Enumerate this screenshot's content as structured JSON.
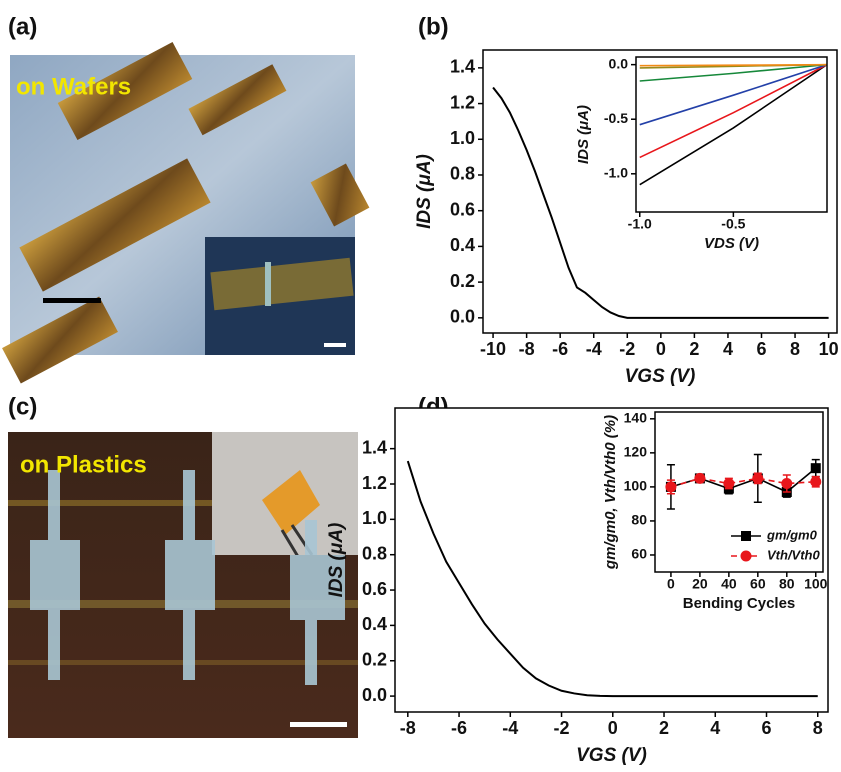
{
  "panels": [
    {
      "label": "(a)",
      "photo_text": "on Wafers"
    },
    {
      "label": "(b)"
    },
    {
      "label": "(c)",
      "photo_text": "on Plastics"
    },
    {
      "label": "(d)"
    }
  ],
  "chart_data": [
    {
      "type": "line",
      "x": [
        -10,
        -9.5,
        -9,
        -8.5,
        -8,
        -7.5,
        -7,
        -6.5,
        -6,
        -5.5,
        -5,
        -4.5,
        -4,
        -3.5,
        -3,
        -2.5,
        -2,
        0,
        2,
        4,
        6,
        8,
        10
      ],
      "series": [
        {
          "color": "#000000",
          "values": [
            1.29,
            1.23,
            1.15,
            1.05,
            0.94,
            0.82,
            0.69,
            0.56,
            0.42,
            0.28,
            0.17,
            0.14,
            0.1,
            0.06,
            0.03,
            0.01,
            0,
            0,
            0,
            0,
            0,
            0,
            0
          ]
        }
      ],
      "xlim": [
        -10.6,
        10.5
      ],
      "xticks": [
        -10,
        -8,
        -6,
        -4,
        -2,
        0,
        2,
        4,
        6,
        8,
        10
      ],
      "ylim": [
        -0.085,
        1.5
      ],
      "yticks": [
        {
          "value": 0,
          "label": "0.0"
        },
        0.2,
        0.4,
        0.6,
        0.8,
        {
          "value": 1,
          "label": "1.0"
        },
        1.2,
        1.4
      ],
      "xlabel": "VGS (V)",
      "ylabel": "IDS (μA)"
    },
    {
      "type": "line",
      "x": [
        -1,
        -0.5,
        0
      ],
      "series": [
        {
          "color": "#000000",
          "values": [
            -1.1,
            -0.58,
            0
          ]
        },
        {
          "color": "#e8161b",
          "values": [
            -0.85,
            -0.44,
            0
          ]
        },
        {
          "color": "#2340a8",
          "values": [
            -0.55,
            -0.28,
            0
          ]
        },
        {
          "color": "#16883a",
          "values": [
            -0.15,
            -0.08,
            0
          ]
        },
        {
          "color": "#9a8a1a",
          "values": [
            -0.03,
            -0.015,
            0
          ]
        },
        {
          "color": "#f08a16",
          "values": [
            -0.01,
            -0.005,
            0
          ]
        }
      ],
      "xlim": [
        -1.02,
        0
      ],
      "xticks": [
        {
          "value": -1,
          "label": "-1.0"
        },
        -0.5
      ],
      "ylim": [
        -1.35,
        0.07
      ],
      "yticks": [
        {
          "value": 0,
          "label": "0.0"
        },
        -0.5,
        {
          "value": -1,
          "label": "-1.0"
        }
      ],
      "xlabel": "VDS (V)",
      "ylabel": "IDS (μA)"
    },
    {
      "type": "line",
      "x": [
        -8,
        -7.5,
        -7,
        -6.5,
        -6,
        -5.5,
        -5,
        -4.5,
        -4,
        -3.5,
        -3,
        -2.5,
        -2,
        -1.5,
        -1,
        -0.5,
        0,
        2,
        4,
        6,
        8
      ],
      "series": [
        {
          "color": "#000000",
          "values": [
            1.33,
            1.1,
            0.92,
            0.76,
            0.64,
            0.52,
            0.41,
            0.32,
            0.24,
            0.16,
            0.1,
            0.06,
            0.03,
            0.015,
            0.005,
            0.001,
            0,
            0,
            0,
            0,
            0
          ]
        }
      ],
      "xlim": [
        -8.5,
        8.4
      ],
      "xticks": [
        -8,
        -6,
        -4,
        -2,
        0,
        2,
        4,
        6,
        8
      ],
      "ylim": [
        -0.09,
        1.63
      ],
      "yticks": [
        {
          "value": 0,
          "label": "0.0"
        },
        0.2,
        0.4,
        0.6,
        0.8,
        {
          "value": 1,
          "label": "1.0"
        },
        1.2,
        1.4
      ],
      "xlabel": "VGS (V)",
      "ylabel": "IDS (μA)"
    },
    {
      "type": "line",
      "x": [
        0,
        20,
        40,
        60,
        80,
        100
      ],
      "series": [
        {
          "name": "gm/gm0",
          "color": "#000000",
          "marker": "square",
          "linestyle": "solid",
          "values": [
            100,
            105,
            99,
            105,
            97,
            111
          ],
          "errors": [
            13,
            2,
            3,
            14,
            3,
            5
          ]
        },
        {
          "name": "Vth/Vth0",
          "color": "#e8161b",
          "marker": "circle",
          "linestyle": "dashed",
          "values": [
            100,
            105,
            102,
            105,
            102,
            103
          ],
          "errors": [
            4,
            2,
            3,
            3,
            5,
            3
          ]
        }
      ],
      "xlim": [
        -11,
        105
      ],
      "xticks": [
        0,
        20,
        40,
        60,
        80,
        100
      ],
      "ylim": [
        50,
        144
      ],
      "yticks": [
        60,
        80,
        100,
        120,
        140
      ],
      "xlabel": "Bending Cycles",
      "ylabel": "gm/gm0, Vth/Vth0 (%)",
      "legend": "lower right"
    }
  ]
}
